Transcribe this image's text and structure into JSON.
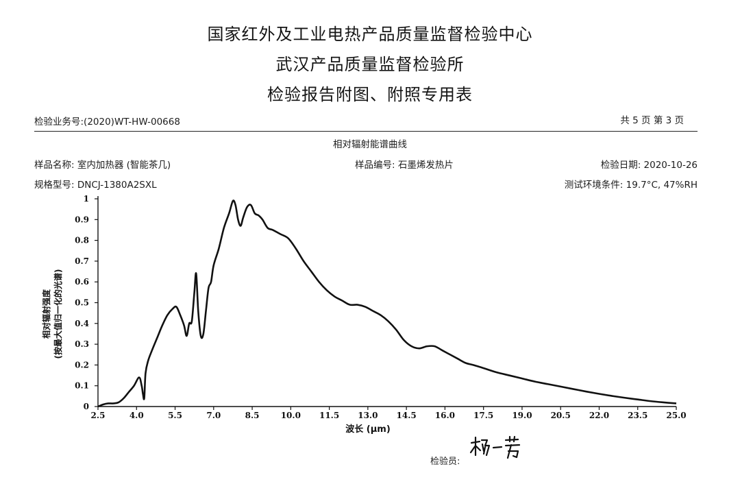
{
  "header": {
    "line1": "国家红外及工业电热产品质量监督检验中心",
    "line2": "武汉产品质量监督检验所",
    "line3": "检验报告附图、附照专用表"
  },
  "report": {
    "business_no": "检验业务号:(2020)WT-HW-00668",
    "page_info": "共 5 页 第 3 页",
    "sample_name": "样品名称: 室内加热器 (智能茶几)",
    "sample_no": "样品编号: 石墨烯发热片",
    "inspection_date": "检验日期: 2020-10-26",
    "model": "规格型号: DNCJ-1380A2SXL",
    "test_env": "测试环境条件: 19.7°C, 47%RH",
    "inspector_label": "检验员:",
    "signature": "杨一芳"
  },
  "chart_data": {
    "type": "line",
    "title": "相对辐射能谱曲线",
    "xlabel": "波长 (μm)",
    "ylabel": [
      "相对辐射强度",
      "(按最大值归一化的光谱)"
    ],
    "xlim": [
      2.5,
      25.0
    ],
    "ylim": [
      0,
      1
    ],
    "x_ticks": [
      "2.5",
      "4.0",
      "5.5",
      "7.0",
      "8.5",
      "10.0",
      "11.5",
      "13.0",
      "14.5",
      "16.0",
      "17.5",
      "19.0",
      "20.5",
      "22.0",
      "23.5",
      "25.0"
    ],
    "y_ticks": [
      "0",
      "0.1",
      "0.2",
      "0.3",
      "0.4",
      "0.5",
      "0.6",
      "0.7",
      "0.8",
      "0.9",
      "1"
    ],
    "grid": false,
    "line_color": "#111111",
    "series": [
      {
        "x": [
          2.5,
          2.7,
          2.9,
          3.1,
          3.3,
          3.5,
          3.7,
          3.9,
          4.1,
          4.2,
          4.25,
          4.3,
          4.35,
          4.45,
          4.6,
          4.8,
          5.0,
          5.2,
          5.4,
          5.55,
          5.7,
          5.85,
          5.95,
          6.05,
          6.15,
          6.25,
          6.32,
          6.4,
          6.5,
          6.6,
          6.7,
          6.8,
          6.9,
          7.0,
          7.2,
          7.4,
          7.6,
          7.75,
          7.85,
          7.95,
          8.05,
          8.15,
          8.3,
          8.45,
          8.6,
          8.75,
          8.9,
          9.1,
          9.3,
          9.6,
          9.9,
          10.2,
          10.5,
          10.8,
          11.1,
          11.4,
          11.7,
          12.0,
          12.3,
          12.6,
          12.9,
          13.2,
          13.5,
          13.8,
          14.1,
          14.4,
          14.7,
          15.0,
          15.3,
          15.6,
          15.9,
          16.2,
          16.5,
          16.8,
          17.1,
          17.5,
          18.0,
          18.5,
          19.0,
          19.5,
          20.0,
          20.5,
          21.0,
          21.5,
          22.0,
          22.5,
          23.0,
          23.5,
          24.0,
          24.5,
          25.0
        ],
        "y": [
          0.0,
          0.01,
          0.015,
          0.015,
          0.02,
          0.04,
          0.07,
          0.1,
          0.14,
          0.1,
          0.06,
          0.04,
          0.16,
          0.22,
          0.27,
          0.33,
          0.39,
          0.44,
          0.47,
          0.48,
          0.44,
          0.39,
          0.34,
          0.4,
          0.41,
          0.55,
          0.64,
          0.46,
          0.34,
          0.35,
          0.46,
          0.57,
          0.6,
          0.68,
          0.76,
          0.86,
          0.93,
          0.99,
          0.97,
          0.9,
          0.87,
          0.91,
          0.96,
          0.97,
          0.93,
          0.92,
          0.9,
          0.86,
          0.85,
          0.83,
          0.81,
          0.76,
          0.7,
          0.65,
          0.6,
          0.56,
          0.53,
          0.51,
          0.49,
          0.49,
          0.48,
          0.46,
          0.44,
          0.41,
          0.37,
          0.32,
          0.29,
          0.28,
          0.29,
          0.29,
          0.27,
          0.25,
          0.23,
          0.21,
          0.2,
          0.185,
          0.165,
          0.15,
          0.135,
          0.12,
          0.108,
          0.096,
          0.084,
          0.072,
          0.061,
          0.051,
          0.042,
          0.034,
          0.026,
          0.02,
          0.015
        ]
      }
    ]
  }
}
